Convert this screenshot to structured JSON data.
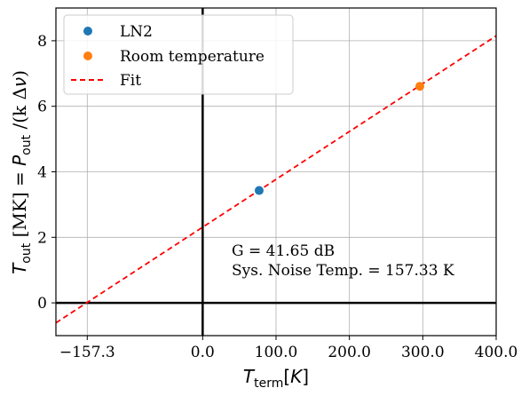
{
  "chart_data": {
    "type": "scatter",
    "xlabel": "T_term[K]",
    "ylabel": "T_out [MK] = P_out /(k Δν)",
    "xlim": [
      -200,
      400
    ],
    "ylim": [
      -1,
      9
    ],
    "x_ticks": [
      -157.3,
      0.0,
      100.0,
      200.0,
      300.0,
      400.0
    ],
    "x_tick_labels": [
      "−157.3",
      "0.0",
      "100.0",
      "200.0",
      "300.0",
      "400.0"
    ],
    "y_ticks": [
      0,
      2,
      4,
      6,
      8
    ],
    "y_tick_labels": [
      "0",
      "2",
      "4",
      "6",
      "8"
    ],
    "grid": true,
    "legend_position": "top-left",
    "series": [
      {
        "name": "LN2",
        "type": "scatter",
        "color": "#1f77b4",
        "points": [
          [
            77.0,
            3.43
          ]
        ]
      },
      {
        "name": "Room temperature",
        "type": "scatter",
        "color": "#ff7f0e",
        "points": [
          [
            296.0,
            6.61
          ]
        ]
      },
      {
        "name": "Fit",
        "type": "line",
        "style": "dashed",
        "color": "#ff0000",
        "x": [
          -200,
          400
        ],
        "y": [
          -0.61,
          8.15
        ]
      }
    ],
    "reference_lines": {
      "x0": true,
      "y0": true
    },
    "annotations": [
      "G = 41.65 dB",
      "Sys. Noise Temp. = 157.33 K"
    ]
  }
}
